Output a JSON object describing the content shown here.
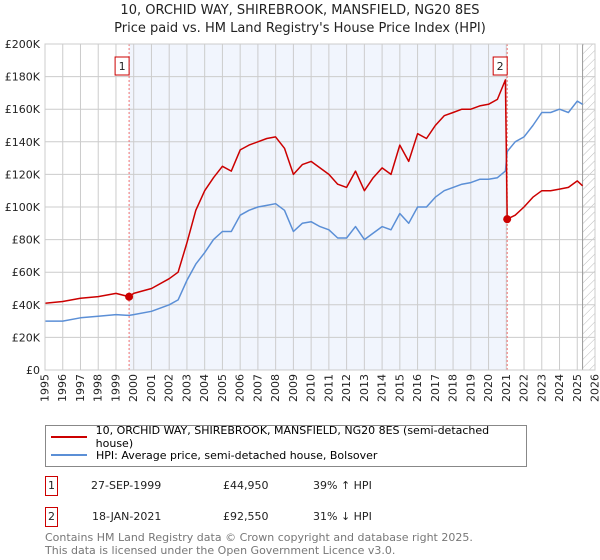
{
  "chart_data": {
    "type": "line",
    "title": "10, ORCHID WAY, SHIREBROOK, MANSFIELD, NG20 8ES",
    "subtitle": "Price paid vs. HM Land Registry's House Price Index (HPI)",
    "xlim": [
      1995,
      2026
    ],
    "ylim": [
      0,
      200000
    ],
    "x_ticks": [
      "1995",
      "1996",
      "1997",
      "1998",
      "1999",
      "2000",
      "2001",
      "2002",
      "2003",
      "2004",
      "2005",
      "2006",
      "2007",
      "2008",
      "2009",
      "2010",
      "2011",
      "2012",
      "2013",
      "2014",
      "2015",
      "2016",
      "2017",
      "2018",
      "2019",
      "2020",
      "2021",
      "2022",
      "2023",
      "2024",
      "2025",
      "2026"
    ],
    "y_ticks": [
      {
        "v": 0,
        "label": "£0"
      },
      {
        "v": 20000,
        "label": "£20K"
      },
      {
        "v": 40000,
        "label": "£40K"
      },
      {
        "v": 60000,
        "label": "£60K"
      },
      {
        "v": 80000,
        "label": "£80K"
      },
      {
        "v": 100000,
        "label": "£100K"
      },
      {
        "v": 120000,
        "label": "£120K"
      },
      {
        "v": 140000,
        "label": "£140K"
      },
      {
        "v": 160000,
        "label": "£160K"
      },
      {
        "v": 180000,
        "label": "£180K"
      },
      {
        "v": 200000,
        "label": "£200K"
      }
    ],
    "grid": true,
    "shaded_range": [
      1999.74,
      2021.05
    ],
    "forecast_hatch_from": 2025.3,
    "series": [
      {
        "name": "10, ORCHID WAY, SHIREBROOK, MANSFIELD, NG20 8ES (semi-detached house)",
        "color": "#cc0000",
        "x": [
          1995,
          1996,
          1997,
          1998,
          1999,
          1999.74,
          2000,
          2001,
          2002,
          2002.5,
          2003,
          2003.5,
          2004,
          2004.5,
          2005,
          2005.5,
          2006,
          2006.5,
          2007,
          2007.5,
          2008,
          2008.5,
          2009,
          2009.5,
          2010,
          2010.5,
          2011,
          2011.5,
          2012,
          2012.5,
          2013,
          2013.5,
          2014,
          2014.5,
          2015,
          2015.5,
          2016,
          2016.5,
          2017,
          2017.5,
          2018,
          2018.5,
          2019,
          2019.5,
          2020,
          2020.5,
          2020.95,
          2021.05,
          2021.5,
          2022,
          2022.5,
          2023,
          2023.5,
          2024,
          2024.5,
          2025,
          2025.3
        ],
        "y": [
          41000,
          42000,
          44000,
          45000,
          47000,
          44950,
          47000,
          50000,
          56000,
          60000,
          78000,
          98000,
          110000,
          118000,
          125000,
          122000,
          135000,
          138000,
          140000,
          142000,
          143000,
          136000,
          120000,
          126000,
          128000,
          124000,
          120000,
          114000,
          112000,
          122000,
          110000,
          118000,
          124000,
          120000,
          138000,
          128000,
          145000,
          142000,
          150000,
          156000,
          158000,
          160000,
          160000,
          162000,
          163000,
          166000,
          178000,
          92550,
          95000,
          100000,
          106000,
          110000,
          110000,
          111000,
          112000,
          116000,
          113000
        ]
      },
      {
        "name": "HPI: Average price, semi-detached house, Bolsover",
        "color": "#5b8fd6",
        "x": [
          1995,
          1996,
          1997,
          1998,
          1999,
          1999.74,
          2000,
          2001,
          2002,
          2002.5,
          2003,
          2003.5,
          2004,
          2004.5,
          2005,
          2005.5,
          2006,
          2006.5,
          2007,
          2007.5,
          2008,
          2008.5,
          2009,
          2009.5,
          2010,
          2010.5,
          2011,
          2011.5,
          2012,
          2012.5,
          2013,
          2013.5,
          2014,
          2014.5,
          2015,
          2015.5,
          2016,
          2016.5,
          2017,
          2017.5,
          2018,
          2018.5,
          2019,
          2019.5,
          2020,
          2020.5,
          2020.95,
          2021.05,
          2021.5,
          2022,
          2022.5,
          2023,
          2023.5,
          2024,
          2024.5,
          2025,
          2025.3
        ],
        "y": [
          30000,
          30000,
          32000,
          33000,
          34000,
          33500,
          34000,
          36000,
          40000,
          43000,
          55000,
          65000,
          72000,
          80000,
          85000,
          85000,
          95000,
          98000,
          100000,
          101000,
          102000,
          98000,
          85000,
          90000,
          91000,
          88000,
          86000,
          81000,
          81000,
          88000,
          80000,
          84000,
          88000,
          86000,
          96000,
          90000,
          100000,
          100000,
          106000,
          110000,
          112000,
          114000,
          115000,
          117000,
          117000,
          118000,
          122000,
          134000,
          140000,
          143000,
          150000,
          158000,
          158000,
          160000,
          158000,
          165000,
          163000
        ]
      }
    ],
    "sales": [
      {
        "num": "1",
        "x": 1999.74,
        "y": 44950,
        "date": "27-SEP-1999",
        "price": "£44,950",
        "hpi": "39% ↑ HPI"
      },
      {
        "num": "2",
        "x": 2021.05,
        "y": 92550,
        "date": "18-JAN-2021",
        "price": "£92,550",
        "hpi": "31% ↓ HPI"
      }
    ]
  },
  "footer": {
    "line1": "Contains HM Land Registry data © Crown copyright and database right 2025.",
    "line2": "This data is licensed under the Open Government Licence v3.0."
  }
}
